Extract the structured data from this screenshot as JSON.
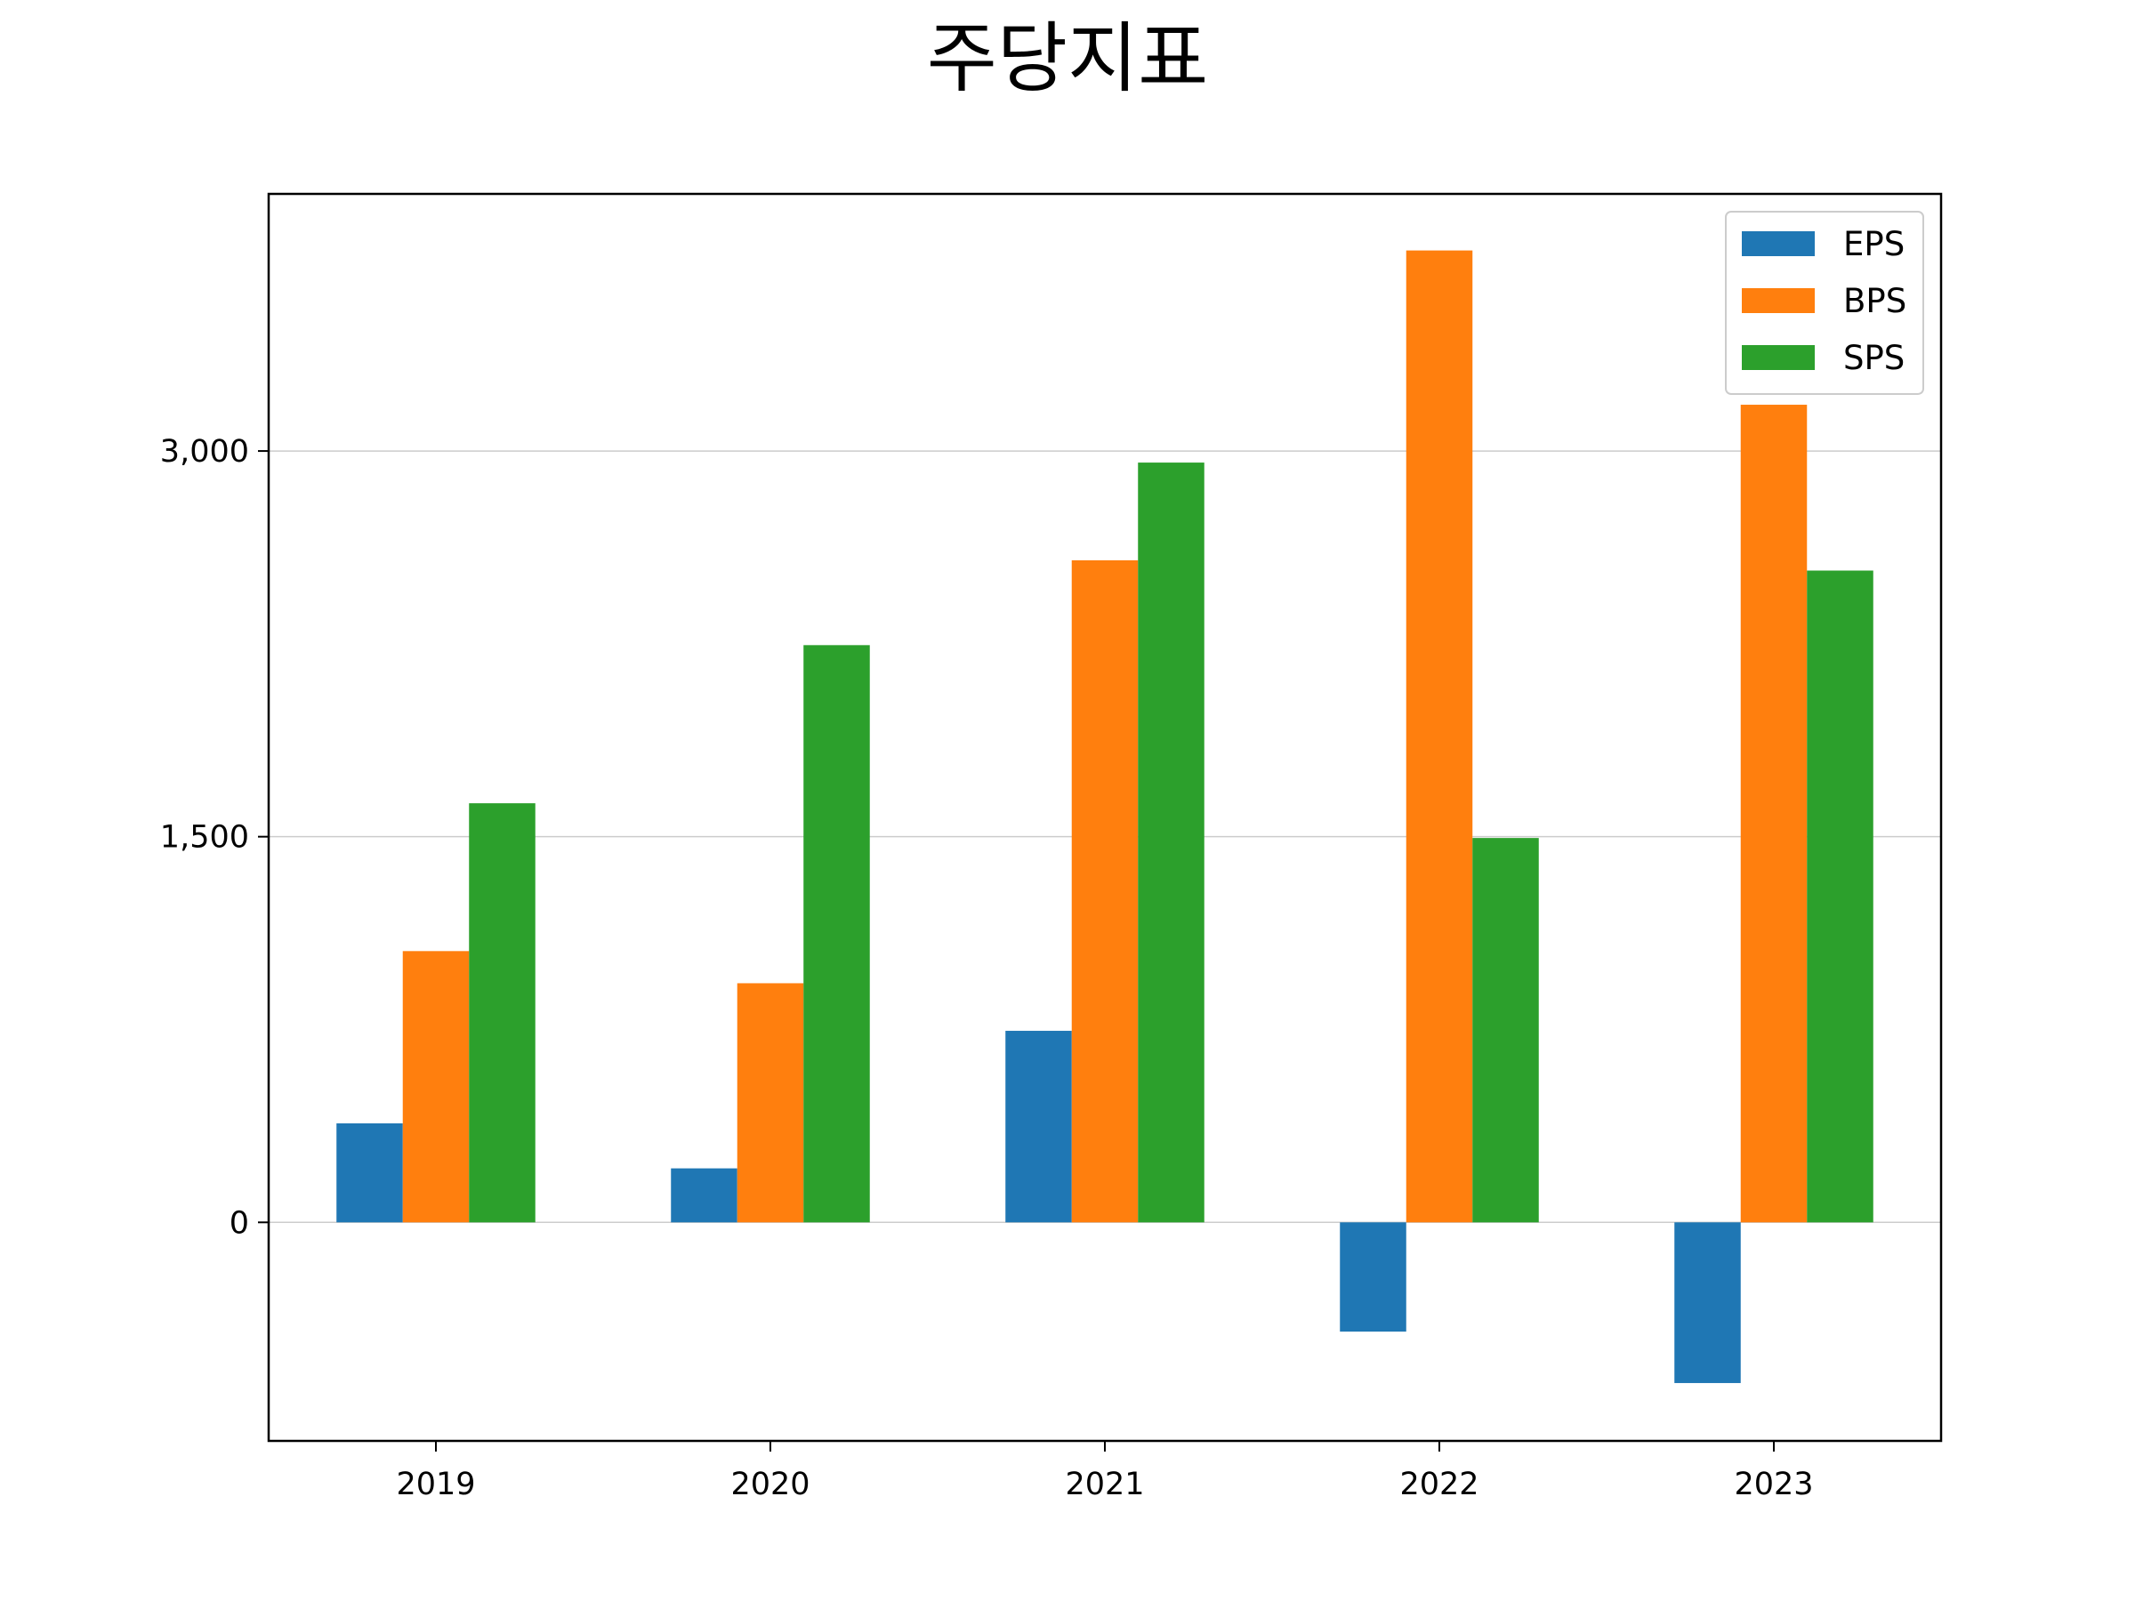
{
  "chart_data": {
    "type": "bar",
    "title": "주당지표",
    "xlabel": "",
    "ylabel": "",
    "categories": [
      "2019",
      "2020",
      "2021",
      "2022",
      "2023"
    ],
    "series": [
      {
        "name": "EPS",
        "color": "#1f77b4",
        "values": [
          385,
          210,
          745,
          -425,
          -625
        ]
      },
      {
        "name": "BPS",
        "color": "#ff7f0e",
        "values": [
          1055,
          930,
          2575,
          3780,
          3180
        ]
      },
      {
        "name": "SPS",
        "color": "#2ca02c",
        "values": [
          1630,
          2245,
          2955,
          1495,
          2535
        ]
      }
    ],
    "ylim": [
      -850,
      4000
    ],
    "yticks": [
      0,
      1500,
      3000
    ],
    "ytick_labels": [
      "0",
      "1,500",
      "3,000"
    ],
    "grid": "horizontal",
    "legend_position": "top-right"
  }
}
